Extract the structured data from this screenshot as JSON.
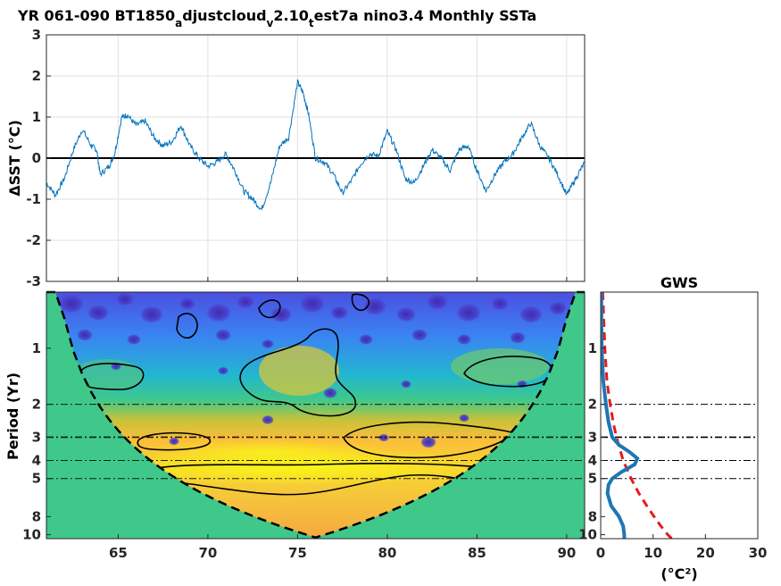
{
  "chart_data": [
    {
      "type": "line",
      "title": {
        "main": "YR 061-090 BT1850",
        "sub1": "a",
        "part2": "djustcloud",
        "sub2": "v",
        "part3": "2.10",
        "sub3": "t",
        "part4": "est7a nino3.4 Monthly SSTa"
      },
      "ylabel": "ΔSST (°C)",
      "xlim": [
        61,
        91
      ],
      "ylim": [
        -3,
        3
      ],
      "yticks": [
        "-3",
        "-2",
        "-1",
        "0",
        "1",
        "2",
        "3"
      ],
      "grid": true,
      "line_color": "#0072BD",
      "zero_line_color": "#000000",
      "x": [
        61.0,
        61.5,
        62.0,
        62.5,
        63.0,
        63.5,
        63.8,
        64.0,
        64.5,
        64.8,
        65.2,
        65.5,
        66.0,
        66.5,
        67.0,
        67.5,
        68.0,
        68.5,
        69.0,
        69.5,
        70.0,
        70.5,
        71.0,
        71.5,
        72.0,
        72.5,
        73.0,
        73.5,
        74.0,
        74.5,
        75.0,
        75.3,
        75.6,
        76.0,
        76.5,
        77.0,
        77.5,
        78.0,
        78.5,
        79.0,
        79.5,
        80.0,
        80.5,
        81.0,
        81.5,
        82.0,
        82.5,
        83.0,
        83.5,
        84.0,
        84.5,
        85.0,
        85.5,
        86.0,
        86.5,
        87.0,
        87.5,
        88.0,
        88.5,
        89.0,
        89.5,
        90.0,
        90.5,
        91.0
      ],
      "y": [
        -0.6,
        -0.9,
        -0.5,
        0.2,
        0.7,
        0.3,
        0.2,
        -0.4,
        -0.2,
        0.1,
        1.0,
        1.05,
        0.8,
        0.9,
        0.5,
        0.3,
        0.4,
        0.8,
        0.3,
        0.0,
        -0.2,
        -0.1,
        0.1,
        -0.3,
        -0.8,
        -1.0,
        -1.25,
        -0.6,
        0.3,
        0.5,
        1.85,
        1.6,
        1.1,
        0.0,
        -0.1,
        -0.4,
        -0.85,
        -0.55,
        -0.15,
        0.1,
        0.05,
        0.65,
        0.2,
        -0.5,
        -0.6,
        -0.2,
        0.2,
        0.0,
        -0.3,
        0.2,
        0.3,
        -0.3,
        -0.8,
        -0.4,
        -0.1,
        0.1,
        0.5,
        0.85,
        0.3,
        0.0,
        -0.4,
        -0.9,
        -0.5,
        -0.1
      ]
    },
    {
      "type": "heatmap",
      "ylabel": "Period (Yr)",
      "xlim": [
        61,
        91
      ],
      "ylim": [
        0.5,
        10.5
      ],
      "yscale": "log",
      "xticks": [
        "65",
        "70",
        "75",
        "80",
        "85",
        "90"
      ],
      "yticks": [
        "1",
        "2",
        "3",
        "4",
        "5",
        "8",
        "10"
      ],
      "hlines_periods": [
        2,
        3,
        4,
        5
      ],
      "colormap": "parula",
      "cone_of_influence": true,
      "cone_fill_color": "#3fc88a",
      "peak_period_band": [
        3,
        6
      ]
    },
    {
      "type": "line",
      "title": "GWS",
      "xlabel": "(°C²)",
      "xlim": [
        0,
        30
      ],
      "xticks": [
        "0",
        "10",
        "20",
        "30"
      ],
      "yscale": "log",
      "yticks": [
        "1",
        "2",
        "3",
        "4",
        "5",
        "8",
        "10"
      ],
      "hlines_periods": [
        2,
        3,
        4,
        5
      ],
      "series": [
        {
          "style": "solid",
          "color": "#0072BD",
          "period": [
            0.5,
            1.0,
            1.5,
            2.0,
            2.5,
            3.0,
            3.3,
            3.6,
            3.9,
            4.2,
            4.6,
            5.0,
            5.4,
            6.0,
            7.0,
            8.0,
            9.0,
            10.0,
            10.5
          ],
          "power": [
            0.1,
            0.2,
            0.5,
            1.0,
            1.5,
            2.2,
            3.5,
            5.5,
            7.0,
            6.5,
            4.0,
            2.2,
            1.5,
            1.3,
            2.0,
            3.5,
            4.3,
            4.5,
            4.5
          ]
        },
        {
          "style": "dashed",
          "color": "#e8191c",
          "period": [
            0.5,
            1.0,
            1.5,
            2.0,
            2.5,
            3.0,
            3.5,
            4.0,
            5.0,
            6.0,
            7.0,
            8.0,
            9.0,
            10.0,
            10.5
          ],
          "power": [
            0.4,
            0.8,
            1.2,
            1.8,
            2.4,
            3.0,
            3.7,
            4.3,
            5.8,
            7.3,
            8.8,
            10.2,
            11.5,
            12.8,
            13.6
          ]
        }
      ]
    }
  ]
}
